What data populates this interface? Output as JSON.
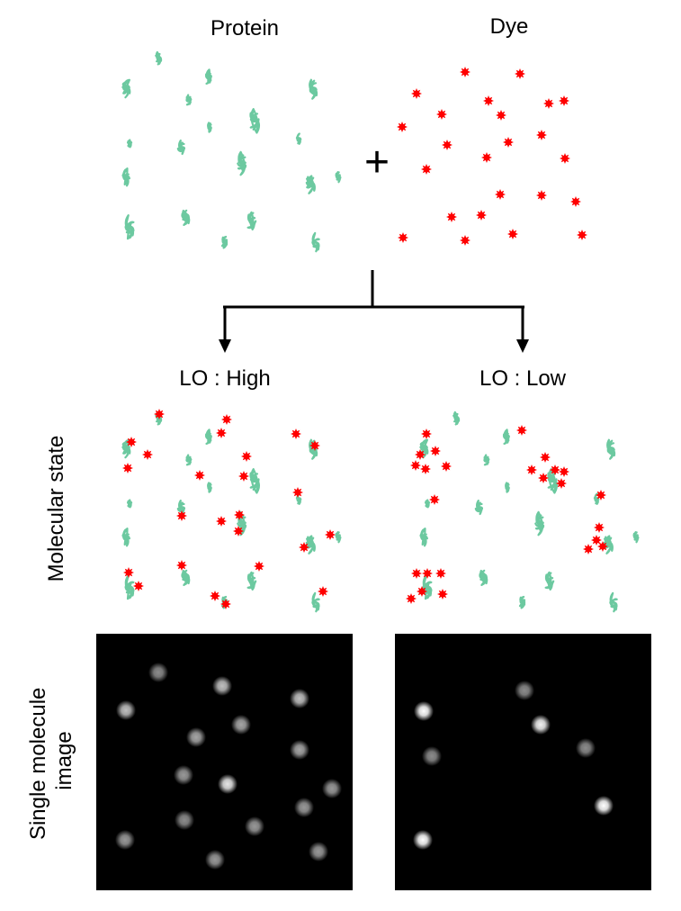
{
  "labels": {
    "protein": "Protein",
    "dye": "Dye",
    "plus": "+",
    "lo_high": "LO : High",
    "lo_low": "LO : Low",
    "row_molecular": "Molecular state",
    "row_single_line1": "Single molecule",
    "row_single_line2": "image"
  },
  "colors": {
    "protein": "#6cc9a0",
    "dye": "#ff0000",
    "arrow": "#000000",
    "image_bg": "#000000",
    "spot": "#ffffff"
  },
  "icons": {
    "protein": "protein-coil-icon",
    "dye": "dye-star-icon",
    "spot": "fluorescent-spot-icon"
  },
  "spot_brightness": {
    "lo_high": [
      0.55,
      0.75,
      0.75,
      0.75,
      0.65,
      0.65,
      0.65,
      0.6,
      0.9,
      0.6,
      0.6,
      0.55,
      0.6,
      0.6,
      0.6,
      0.6
    ],
    "lo_low": [
      0.55,
      1.0,
      0.95,
      0.55,
      0.55,
      1.0,
      1.0
    ]
  }
}
